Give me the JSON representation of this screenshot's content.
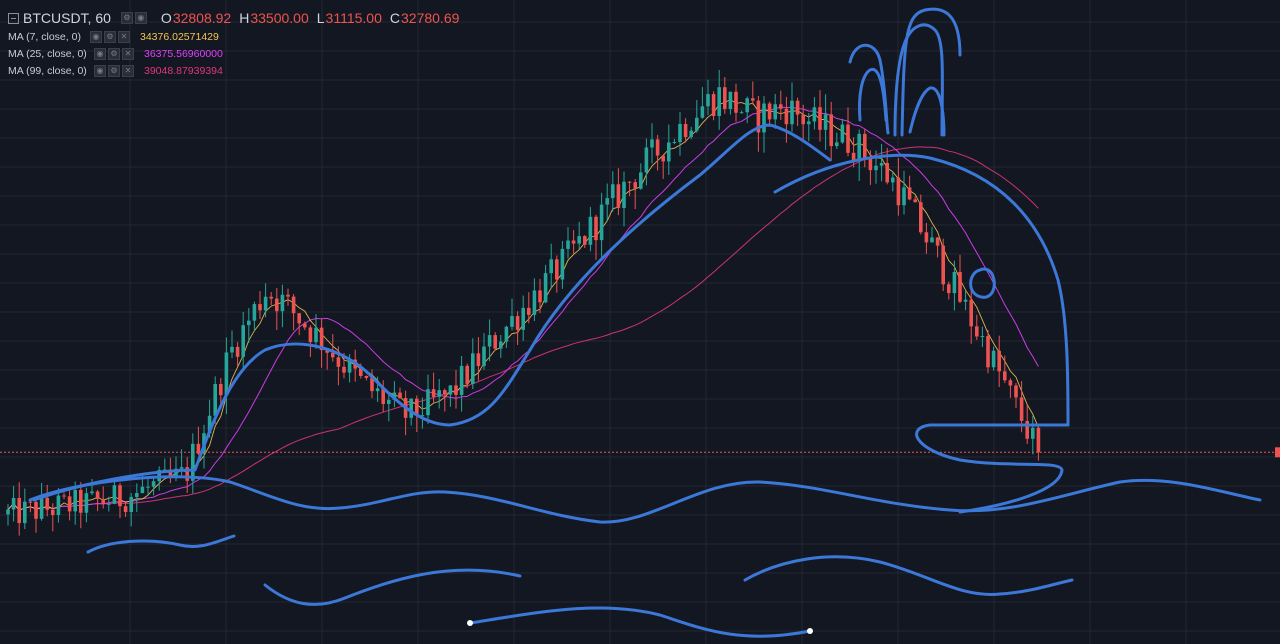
{
  "header": {
    "symbol": "BTCUSDT, 60",
    "open_key": "O",
    "open": "32808.92",
    "high_key": "H",
    "high": "33500.00",
    "low_key": "L",
    "low": "31115.00",
    "close_key": "C",
    "close": "32780.69"
  },
  "indicators": [
    {
      "label": "MA (7, close, 0)",
      "value": "34376.02571429",
      "color": "#f5c451"
    },
    {
      "label": "MA (25, close, 0)",
      "value": "36375.56960000",
      "color": "#e040fb"
    },
    {
      "label": "MA (99, close, 0)",
      "value": "39048.87939394",
      "color": "#e0357f"
    }
  ],
  "colors": {
    "background": "#131722",
    "grid": "#232733",
    "up": "#26a69a",
    "down": "#ef5350",
    "price_line": "#ef5350",
    "drawing": "#3b78d8"
  },
  "chart_data": {
    "type": "candlestick",
    "symbol": "BTCUSDT",
    "interval": "60",
    "bars": 185,
    "last_close": 32780.69,
    "ma_last": {
      "ma7": 34376.03,
      "ma25": 36375.57,
      "ma99": 39048.88
    },
    "path": [
      [
        0,
        31200
      ],
      [
        25,
        31600
      ],
      [
        40,
        32200
      ],
      [
        50,
        35300
      ],
      [
        58,
        36900
      ],
      [
        62,
        36600
      ],
      [
        70,
        35700
      ],
      [
        80,
        34500
      ],
      [
        90,
        33700
      ],
      [
        100,
        34300
      ],
      [
        110,
        35700
      ],
      [
        125,
        37600
      ],
      [
        140,
        39700
      ],
      [
        155,
        41500
      ],
      [
        160,
        41900
      ],
      [
        168,
        41300
      ],
      [
        175,
        41600
      ],
      [
        182,
        41100
      ],
      [
        190,
        40700
      ],
      [
        200,
        39600
      ],
      [
        210,
        37600
      ],
      [
        220,
        35500
      ],
      [
        228,
        33700
      ],
      [
        232,
        32780
      ]
    ],
    "price_range": [
      28000,
      44300
    ],
    "grid": true,
    "drawing_overlay": "whale"
  }
}
